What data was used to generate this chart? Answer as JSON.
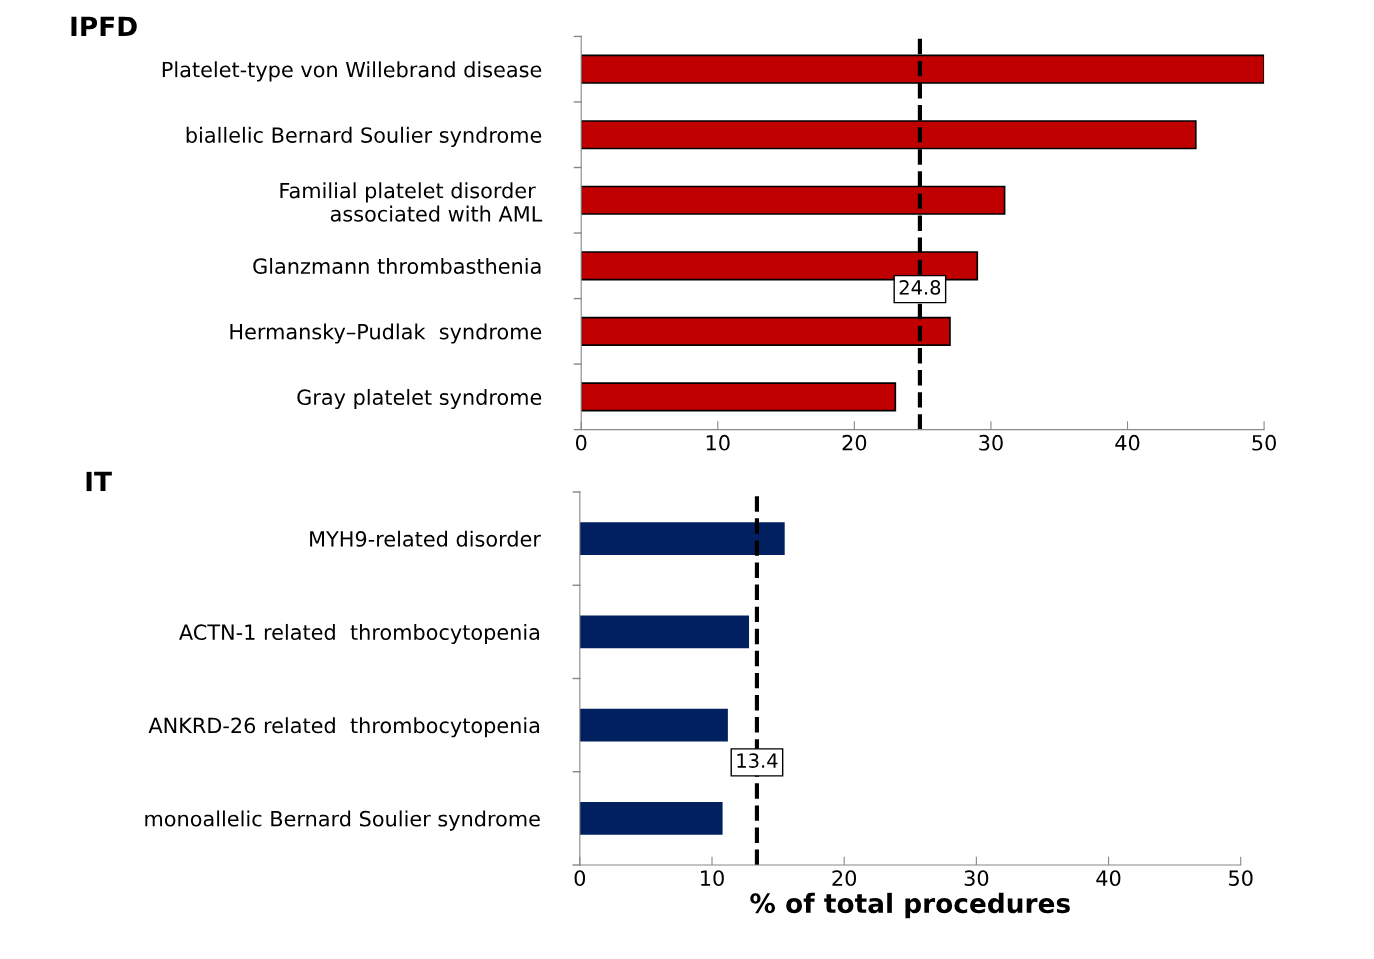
{
  "chart_data": [
    {
      "type": "bar",
      "orientation": "horizontal",
      "title": "IPFD",
      "categories": [
        "Platelet-type von Willebrand disease",
        "biallelic Bernard Soulier syndrome",
        "Familial platelet disorder \nassociated with AML",
        "Glanzmann thrombasthenia",
        "Hermansky–Pudlak  syndrome",
        "Gray platelet syndrome"
      ],
      "values": [
        50.0,
        45.0,
        31.0,
        29.0,
        27.0,
        23.0
      ],
      "color": "#c00000",
      "xlim": [
        0,
        50
      ],
      "xticks": [
        0,
        10,
        20,
        30,
        40,
        50
      ],
      "ref_lines": [
        {
          "axis": "x",
          "value": 24.8,
          "label": "24.8",
          "line_style": "dashed",
          "color": "#000000"
        }
      ]
    },
    {
      "type": "bar",
      "orientation": "horizontal",
      "title": "IT",
      "xlabel": "% of total procedures",
      "categories": [
        "MYH9-related disorder",
        "ACTN-1 related  thrombocytopenia",
        "ANKRD-26 related  thrombocytopenia",
        "monoallelic Bernard Soulier syndrome"
      ],
      "values": [
        15.5,
        12.8,
        11.2,
        10.8
      ],
      "color": "#002060",
      "xlim": [
        0,
        50
      ],
      "xticks": [
        0,
        10,
        20,
        30,
        40,
        50
      ],
      "ref_lines": [
        {
          "axis": "x",
          "value": 13.4,
          "label": "13.4",
          "line_style": "dashed",
          "color": "#000000"
        }
      ]
    }
  ]
}
